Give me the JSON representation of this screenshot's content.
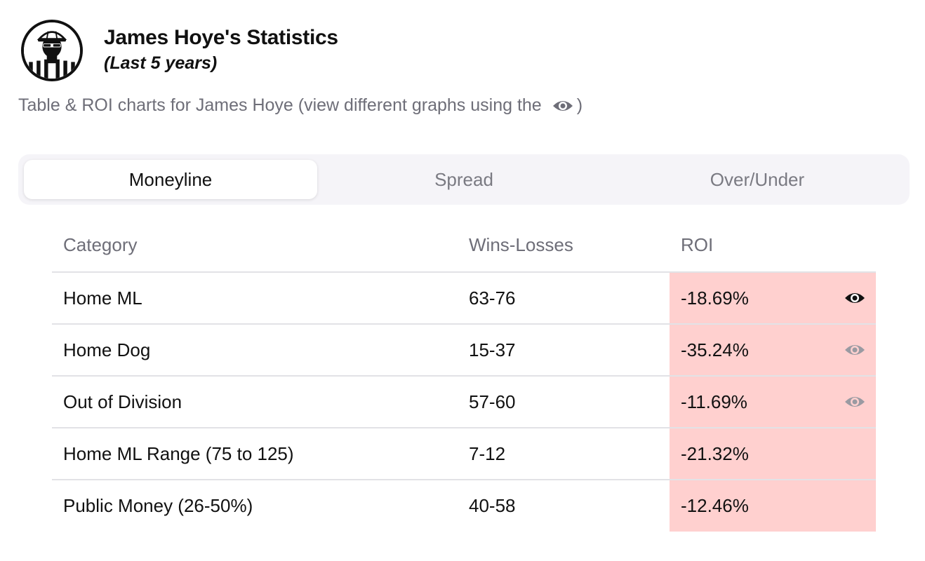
{
  "header": {
    "title": "James Hoye's Statistics",
    "subtitle": "(Last 5 years)"
  },
  "description": {
    "text": "Table & ROI charts for James Hoye (view different graphs using the",
    "close": ")",
    "icon": "eye-icon"
  },
  "tabs": [
    {
      "label": "Moneyline",
      "active": true
    },
    {
      "label": "Spread",
      "active": false
    },
    {
      "label": "Over/Under",
      "active": false
    }
  ],
  "table": {
    "headers": [
      "Category",
      "Wins-Losses",
      "ROI"
    ],
    "rows": [
      {
        "category": "Home ML",
        "record": "63-76",
        "roi": "-18.69%",
        "eye": "active"
      },
      {
        "category": "Home Dog",
        "record": "15-37",
        "roi": "-35.24%",
        "eye": "inactive"
      },
      {
        "category": "Out of Division",
        "record": "57-60",
        "roi": "-11.69%",
        "eye": "inactive"
      },
      {
        "category": "Home ML Range (75 to 125)",
        "record": "7-12",
        "roi": "-21.32%",
        "eye": "none"
      },
      {
        "category": "Public Money (26-50%)",
        "record": "40-58",
        "roi": "-12.46%",
        "eye": "none"
      }
    ]
  },
  "colors": {
    "roi_negative_bg": "#ffd0cf",
    "eye_active": "#111111",
    "eye_inactive": "#9a9aa2"
  }
}
